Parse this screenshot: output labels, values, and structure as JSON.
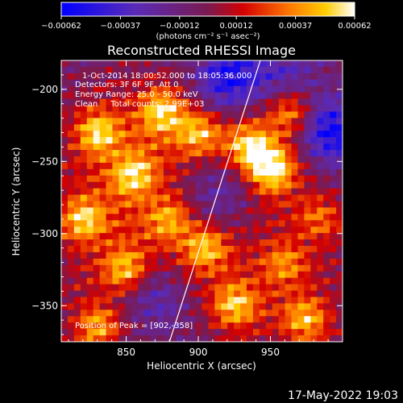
{
  "chart_data": {
    "type": "heatmap",
    "title": "Reconstructed RHESSI Image",
    "xlabel": "Heliocentric X (arcsec)",
    "ylabel": "Heliocentric Y (arcsec)",
    "xlim": [
      805,
      1000
    ],
    "ylim": [
      -375,
      -180
    ],
    "x_ticks": [
      850,
      900,
      950
    ],
    "x_tick_labels": [
      "850",
      "900",
      "950"
    ],
    "y_ticks": [
      -200,
      -250,
      -300,
      -350
    ],
    "y_tick_labels": [
      "−200",
      "−250",
      "−300",
      "−350"
    ],
    "colorbar": {
      "range": [
        -0.00062,
        0.00062
      ],
      "ticks": [
        -0.00062,
        -0.00037,
        -0.00012,
        0.00012,
        0.00037,
        0.00062
      ],
      "tick_labels": [
        "−0.00062",
        "−0.00037",
        "−0.00012",
        "0.00012",
        "0.00037",
        "0.00062"
      ],
      "unit_label": "(photons cm⁻² s⁻¹ asec⁻²)",
      "colormap": "blue-purple-red-orange-yellow-white"
    },
    "annotations": {
      "time_range": "1-Oct-2014 18:00:52.000 to 18:05:36.000",
      "detectors": "Detectors: 3F 6F 9F, Att 0",
      "energy": "Energy Range: 25.0 - 50.0 keV",
      "clean": "Clean     Total counts: 2.99E+03",
      "peak": "Position of Peak = [902,-358]"
    },
    "limb_line": [
      {
        "x": 880,
        "y": -375
      },
      {
        "x": 943,
        "y": -180
      }
    ],
    "peak_position": {
      "x": 902,
      "y": -358
    },
    "hotspots": [
      {
        "x": 950,
        "y": -255,
        "strength": 1.0
      },
      {
        "x": 965,
        "y": -215,
        "strength": 0.75
      },
      {
        "x": 935,
        "y": -240,
        "strength": 0.7
      },
      {
        "x": 830,
        "y": -230,
        "strength": 0.85
      },
      {
        "x": 855,
        "y": -260,
        "strength": 0.8
      },
      {
        "x": 875,
        "y": -215,
        "strength": 0.8
      },
      {
        "x": 900,
        "y": -230,
        "strength": 0.7
      },
      {
        "x": 820,
        "y": -290,
        "strength": 0.85
      },
      {
        "x": 850,
        "y": -325,
        "strength": 0.8
      },
      {
        "x": 905,
        "y": -310,
        "strength": 0.75
      },
      {
        "x": 925,
        "y": -350,
        "strength": 0.8
      },
      {
        "x": 975,
        "y": -360,
        "strength": 0.75
      },
      {
        "x": 960,
        "y": -320,
        "strength": 0.55
      },
      {
        "x": 830,
        "y": -365,
        "strength": 0.7
      },
      {
        "x": 880,
        "y": -290,
        "strength": 0.6
      },
      {
        "x": 985,
        "y": -290,
        "strength": 0.5
      }
    ],
    "cold_regions": [
      {
        "x": 920,
        "y": -195,
        "strength": 0.9
      },
      {
        "x": 990,
        "y": -230,
        "strength": 1.0
      },
      {
        "x": 915,
        "y": -270,
        "strength": 0.6
      },
      {
        "x": 870,
        "y": -345,
        "strength": 0.55
      },
      {
        "x": 960,
        "y": -190,
        "strength": 0.5
      }
    ]
  },
  "footer": {
    "date": "17-May-2022 19:03"
  }
}
